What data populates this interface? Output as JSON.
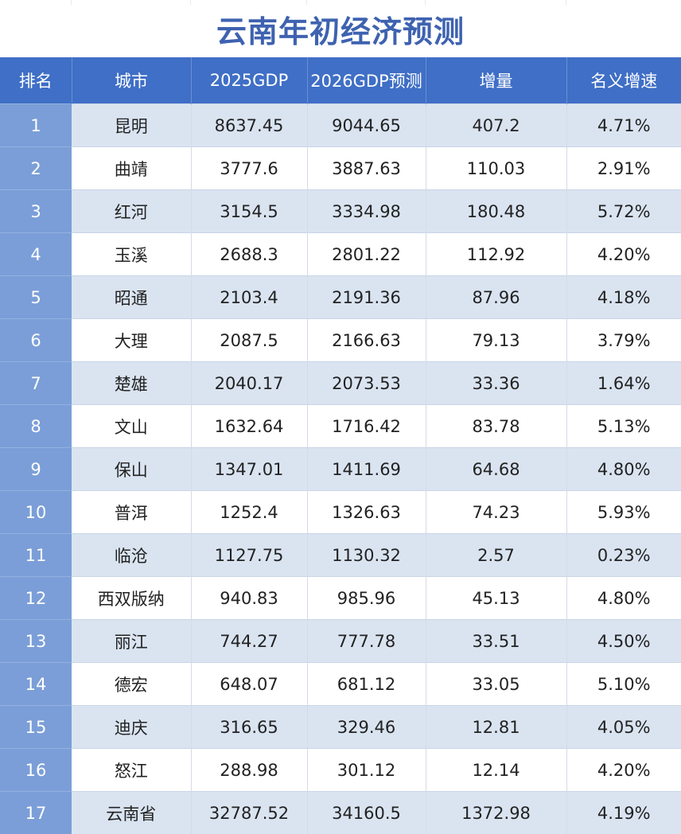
{
  "title": "云南年初经济预测",
  "colors": {
    "title": "#3e62b0",
    "header_bg": "#3f6fc6",
    "rank_bg": "#7b9ed8",
    "row_alt_bg": "#dae4f1",
    "row_bg": "#ffffff"
  },
  "table": {
    "headers": [
      "排名",
      "城市",
      "2025GDP",
      "2026GDP预测",
      "增量",
      "名义增速"
    ],
    "rows": [
      [
        "1",
        "昆明",
        "8637.45",
        "9044.65",
        "407.2",
        "4.71%"
      ],
      [
        "2",
        "曲靖",
        "3777.6",
        "3887.63",
        "110.03",
        "2.91%"
      ],
      [
        "3",
        "红河",
        "3154.5",
        "3334.98",
        "180.48",
        "5.72%"
      ],
      [
        "4",
        "玉溪",
        "2688.3",
        "2801.22",
        "112.92",
        "4.20%"
      ],
      [
        "5",
        "昭通",
        "2103.4",
        "2191.36",
        "87.96",
        "4.18%"
      ],
      [
        "6",
        "大理",
        "2087.5",
        "2166.63",
        "79.13",
        "3.79%"
      ],
      [
        "7",
        "楚雄",
        "2040.17",
        "2073.53",
        "33.36",
        "1.64%"
      ],
      [
        "8",
        "文山",
        "1632.64",
        "1716.42",
        "83.78",
        "5.13%"
      ],
      [
        "9",
        "保山",
        "1347.01",
        "1411.69",
        "64.68",
        "4.80%"
      ],
      [
        "10",
        "普洱",
        "1252.4",
        "1326.63",
        "74.23",
        "5.93%"
      ],
      [
        "11",
        "临沧",
        "1127.75",
        "1130.32",
        "2.57",
        "0.23%"
      ],
      [
        "12",
        "西双版纳",
        "940.83",
        "985.96",
        "45.13",
        "4.80%"
      ],
      [
        "13",
        "丽江",
        "744.27",
        "777.78",
        "33.51",
        "4.50%"
      ],
      [
        "14",
        "德宏",
        "648.07",
        "681.12",
        "33.05",
        "5.10%"
      ],
      [
        "15",
        "迪庆",
        "316.65",
        "329.46",
        "12.81",
        "4.05%"
      ],
      [
        "16",
        "怒江",
        "288.98",
        "301.12",
        "12.14",
        "4.20%"
      ],
      [
        "17",
        "云南省",
        "32787.52",
        "34160.5",
        "1372.98",
        "4.19%"
      ]
    ]
  }
}
